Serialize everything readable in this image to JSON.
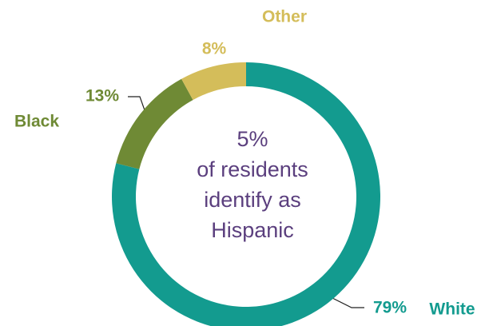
{
  "chart_data": {
    "type": "donut",
    "categories": [
      "White",
      "Black",
      "Other"
    ],
    "values": [
      79,
      13,
      8
    ],
    "value_labels": [
      "79%",
      "13%",
      "8%"
    ],
    "colors": [
      "#139b8f",
      "#6f8a35",
      "#d4bd5a"
    ],
    "annotation": [
      "5%",
      "of residents",
      "identify as",
      "Hispanic"
    ]
  }
}
